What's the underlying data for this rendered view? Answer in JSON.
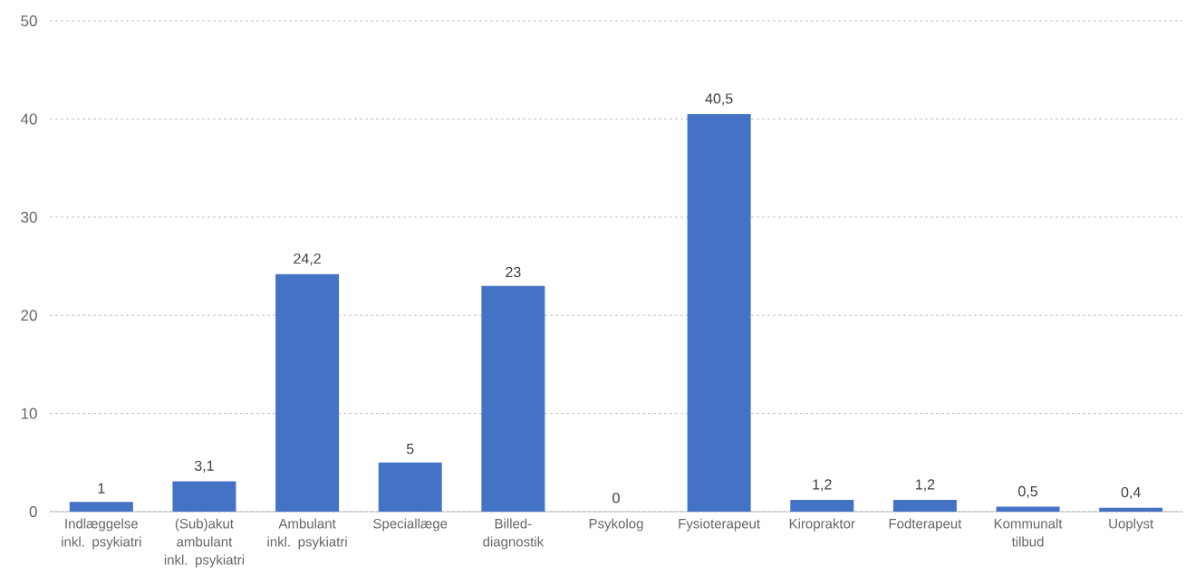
{
  "chart_data": {
    "type": "bar",
    "categories": [
      "Indlæggelse inkl. psykiatri",
      "(Sub)akut ambulant inkl. psykiatri",
      "Ambulant inkl. psykiatri",
      "Speciallæge",
      "Billed-diagnostik",
      "Psykolog",
      "Fysioterapeut",
      "Kiropraktor",
      "Fodterapeut",
      "Kommunalt tilbud",
      "Uoplyst"
    ],
    "values": [
      1,
      3.1,
      24.2,
      5,
      23,
      0,
      40.5,
      1.2,
      1.2,
      0.5,
      0.4
    ],
    "color": "#4472c4",
    "ylim": [
      0,
      50
    ],
    "yticks": [
      0,
      10,
      20,
      30,
      40,
      50
    ],
    "value_labels": [
      "1",
      "3,1",
      "24,2",
      "5",
      "23",
      "0",
      "40,5",
      "1,2",
      "1,2",
      "0,5",
      "0,4"
    ],
    "grid": "y"
  }
}
